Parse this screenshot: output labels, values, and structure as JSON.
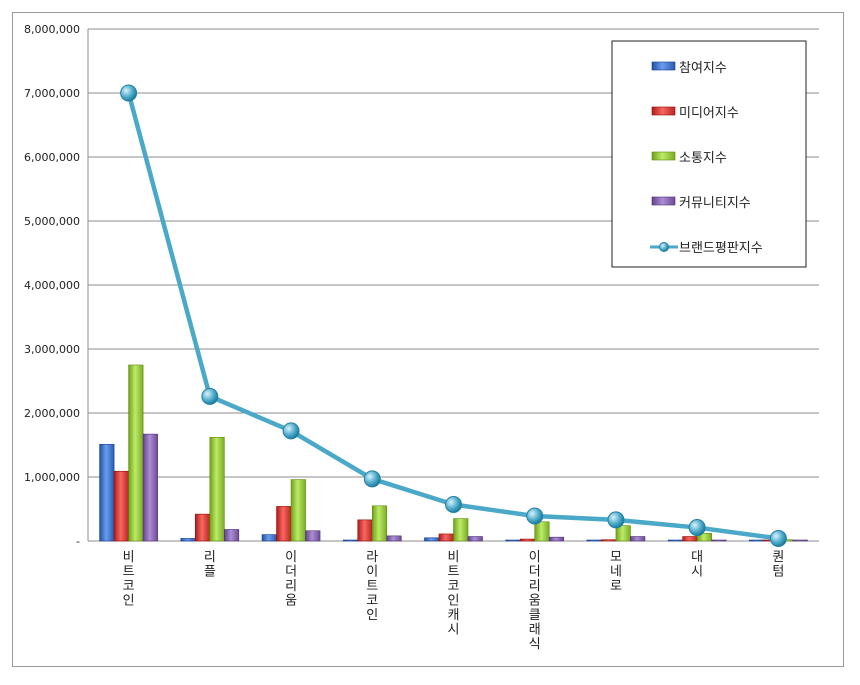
{
  "chart_data": {
    "type": "bar",
    "title": "",
    "xlabel": "",
    "ylabel": "",
    "ylim": [
      0,
      8000000
    ],
    "yticks": [
      0,
      1000000,
      2000000,
      3000000,
      4000000,
      5000000,
      6000000,
      7000000,
      8000000
    ],
    "ytick_labels": [
      "-",
      "1,000,000",
      "2,000,000",
      "3,000,000",
      "4,000,000",
      "5,000,000",
      "6,000,000",
      "7,000,000",
      "8,000,000"
    ],
    "grid": true,
    "legend_position": "top-right",
    "categories": [
      "비트코인",
      "리플",
      "이더리움",
      "라이트코인",
      "비트코인캐시",
      "이더리움클래식",
      "모네로",
      "대시",
      "퀀텀"
    ],
    "series": [
      {
        "name": "참여지수",
        "kind": "bar",
        "color": "#3f6fc1",
        "values": [
          1510000,
          40000,
          100000,
          15000,
          50000,
          10000,
          8000,
          8000,
          5000
        ]
      },
      {
        "name": "미디어지수",
        "kind": "bar",
        "color": "#cc3a36",
        "values": [
          1090000,
          420000,
          540000,
          330000,
          110000,
          30000,
          20000,
          70000,
          10000
        ]
      },
      {
        "name": "소통지수",
        "kind": "bar",
        "color": "#8fbf3a",
        "values": [
          2750000,
          1620000,
          960000,
          550000,
          350000,
          300000,
          240000,
          120000,
          20000
        ]
      },
      {
        "name": "커뮤니티지수",
        "kind": "bar",
        "color": "#8060a8",
        "values": [
          1670000,
          180000,
          160000,
          80000,
          70000,
          60000,
          70000,
          15000,
          5000
        ]
      },
      {
        "name": "브랜드평판지수",
        "kind": "line",
        "color": "#4aa8c9",
        "values": [
          7000000,
          2260000,
          1720000,
          970000,
          570000,
          390000,
          330000,
          210000,
          40000
        ]
      }
    ]
  }
}
